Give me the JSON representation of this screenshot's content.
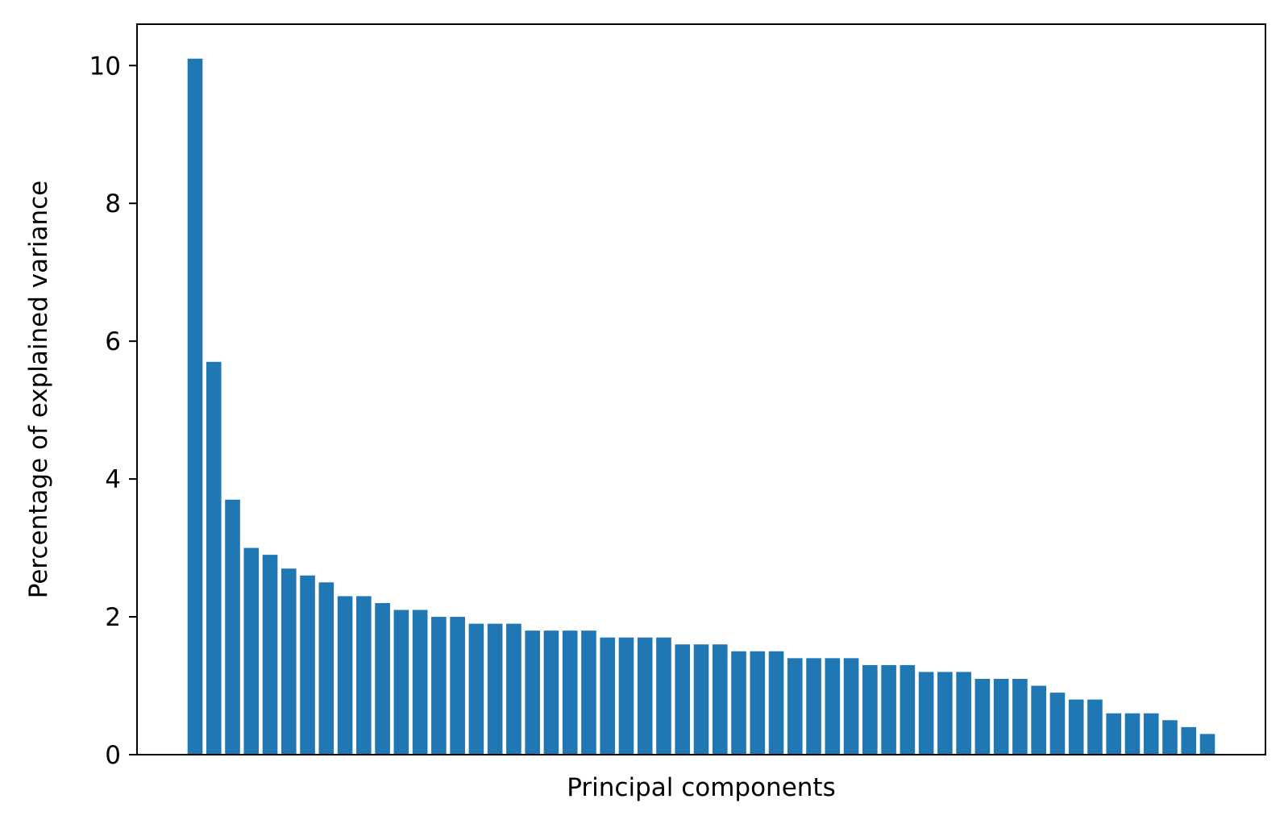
{
  "chart_data": {
    "type": "bar",
    "title": "",
    "xlabel": "Principal components",
    "ylabel": "Percentage of explained variance",
    "ylim": [
      0,
      10.6
    ],
    "yticks": [
      0,
      2,
      4,
      6,
      8,
      10
    ],
    "xticks_visible": false,
    "grid": false,
    "bar_color": "#1f77b4",
    "values": [
      10.1,
      5.7,
      3.7,
      3.0,
      2.9,
      2.7,
      2.6,
      2.5,
      2.3,
      2.3,
      2.2,
      2.1,
      2.1,
      2.0,
      2.0,
      1.9,
      1.9,
      1.9,
      1.8,
      1.8,
      1.8,
      1.8,
      1.7,
      1.7,
      1.7,
      1.7,
      1.6,
      1.6,
      1.6,
      1.5,
      1.5,
      1.5,
      1.4,
      1.4,
      1.4,
      1.4,
      1.3,
      1.3,
      1.3,
      1.2,
      1.2,
      1.2,
      1.1,
      1.1,
      1.1,
      1.0,
      0.9,
      0.8,
      0.8,
      0.6,
      0.6,
      0.6,
      0.5,
      0.4,
      0.3
    ]
  }
}
